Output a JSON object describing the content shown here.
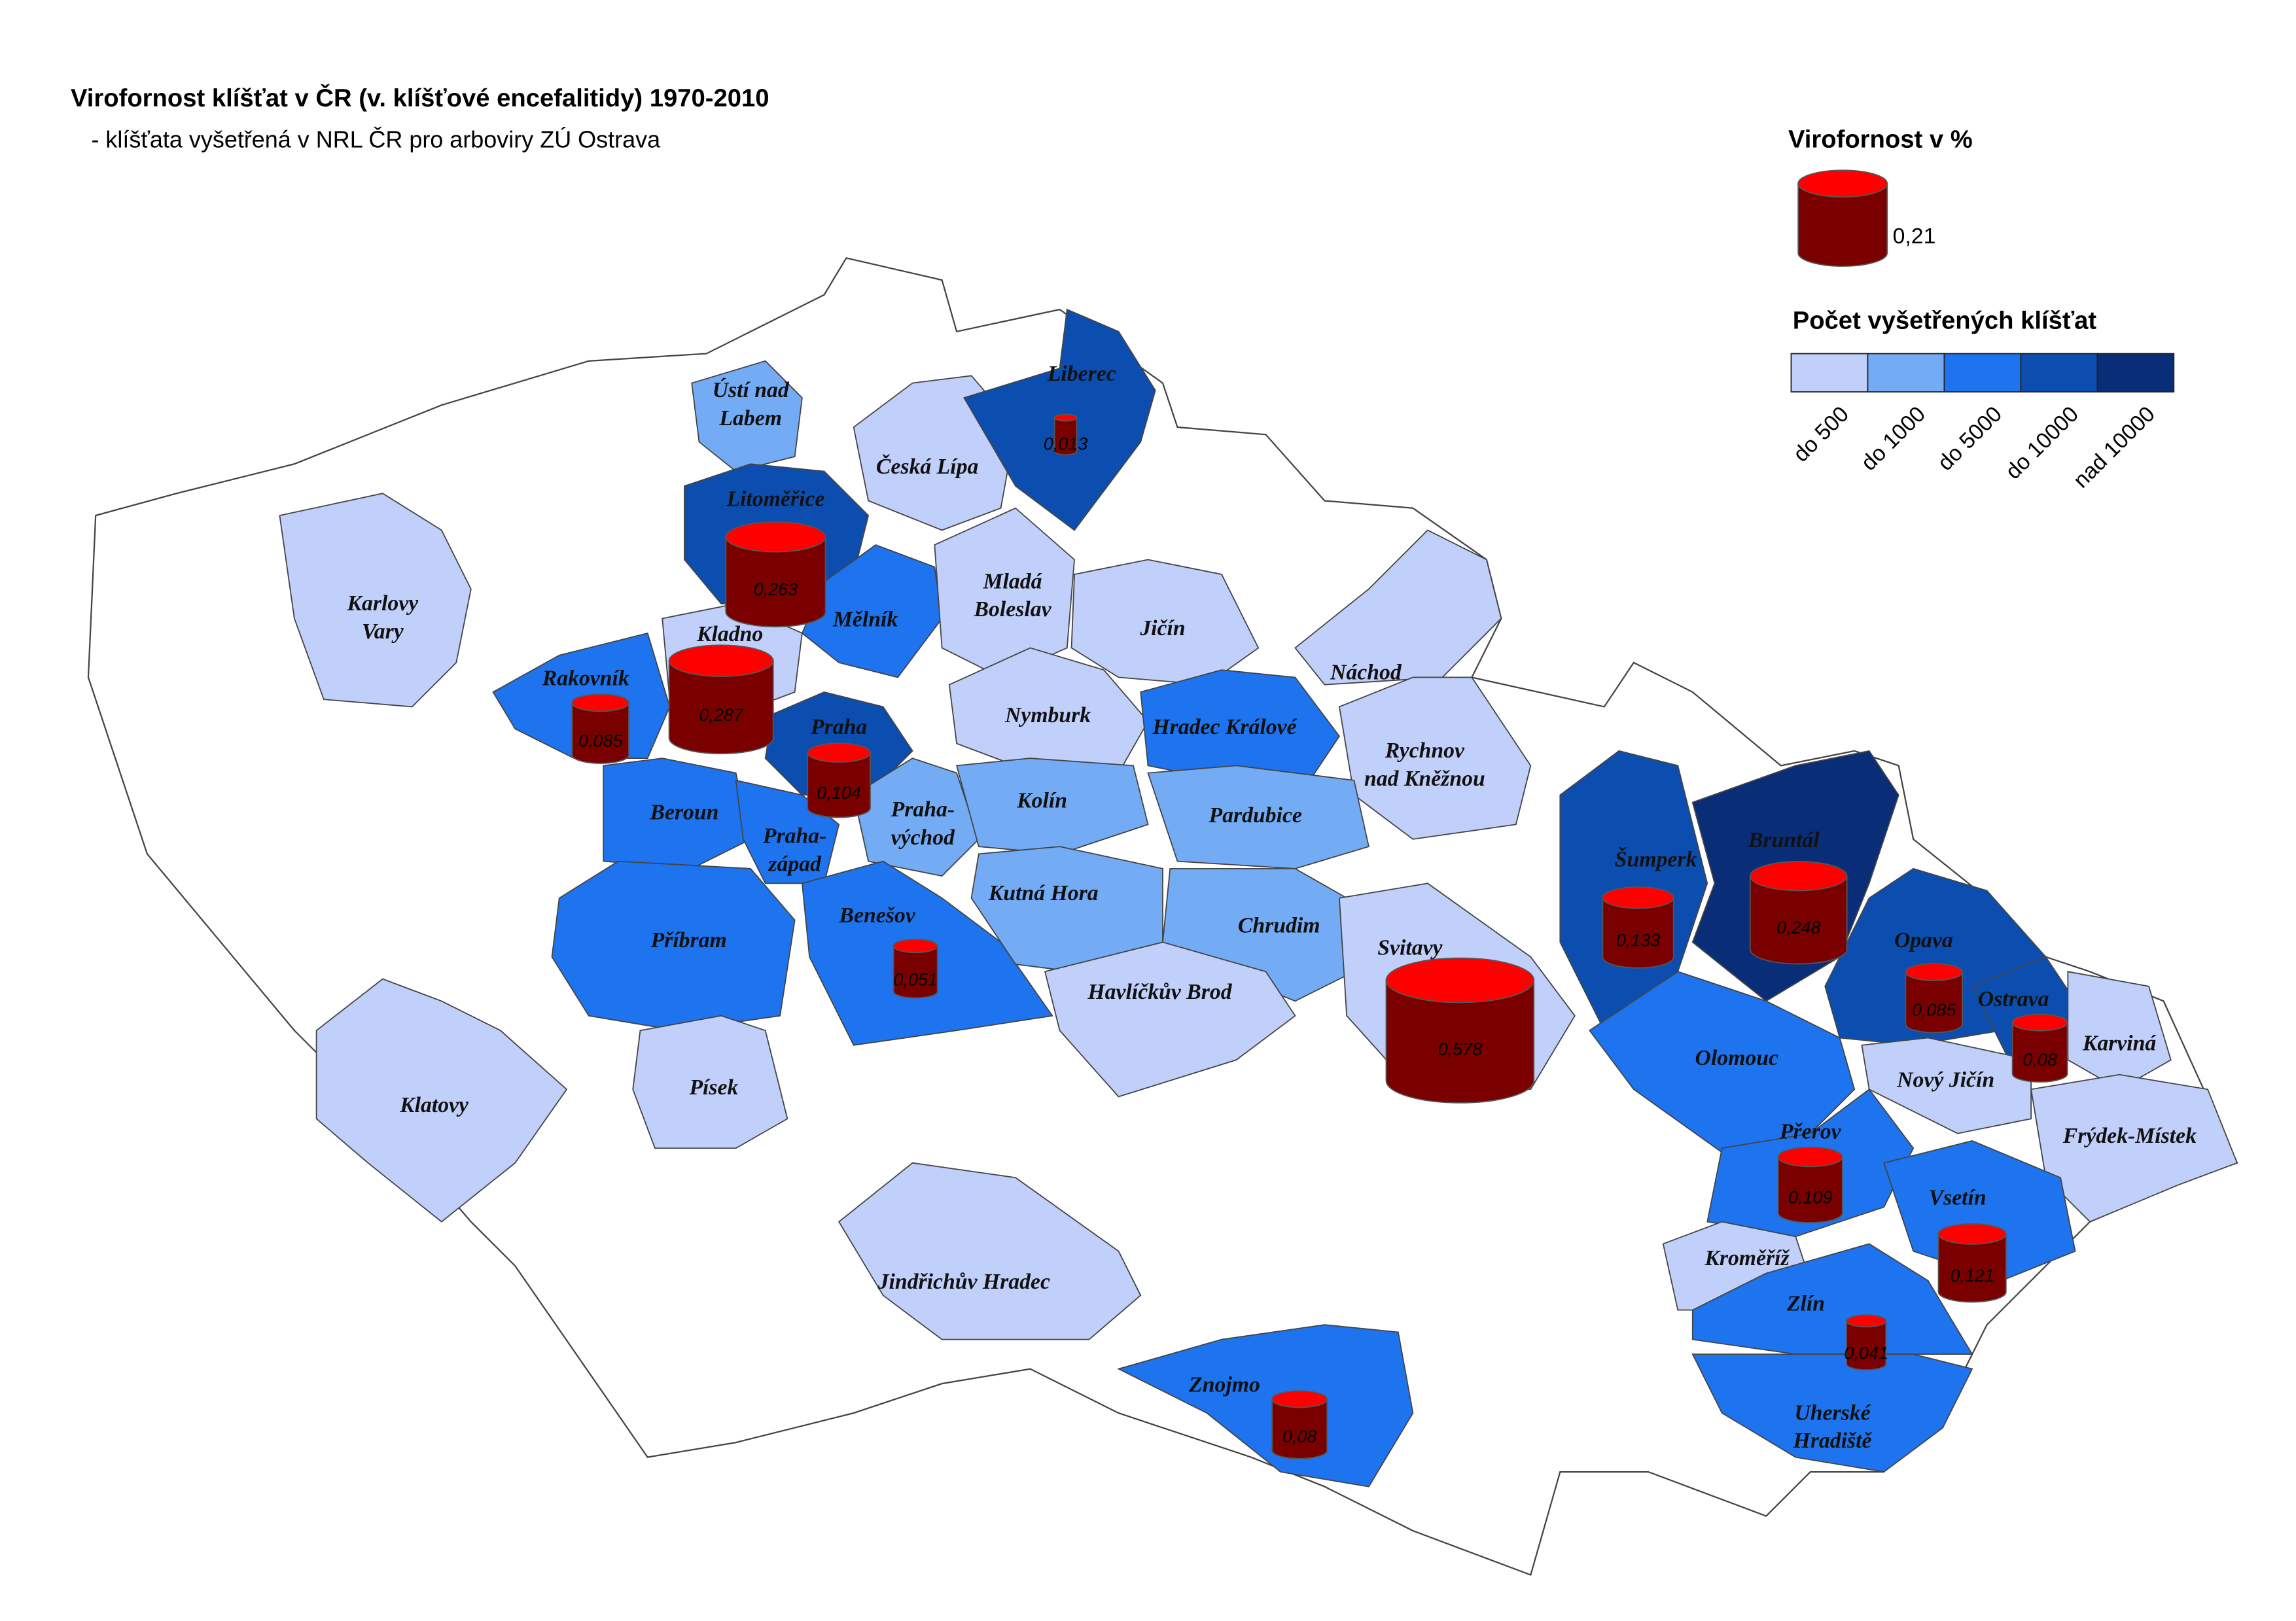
{
  "header": {
    "title": "Virofornost klíšťat v ČR (v. klíšťové encefalitidy) 1970-2010",
    "subtitle": "- klíšťata vyšetřená v NRL ČR pro arboviry ZÚ Ostrava"
  },
  "size_legend": {
    "title": "Virofornost v %",
    "value": 0.21,
    "label": "0,21",
    "top_color": "#ff0000",
    "body_color": "#7a0000"
  },
  "color_legend": {
    "title": "Počet vyšetřených klíšťat",
    "classes": [
      {
        "label": "do 500",
        "color": "#c0d0fa"
      },
      {
        "label": "do 1000",
        "color": "#74abf5"
      },
      {
        "label": "do 5000",
        "color": "#1e73ee"
      },
      {
        "label": "do 10000",
        "color": "#0b4eb0"
      },
      {
        "label": "nad 10000",
        "color": "#0a2d78"
      }
    ]
  },
  "districts": [
    {
      "name": "Karlovy Vary",
      "class": 0
    },
    {
      "name": "Ústí nad Labem",
      "class": 1
    },
    {
      "name": "Česká Lípa",
      "class": 0
    },
    {
      "name": "Liberec",
      "class": 3,
      "value": 0.013,
      "label": "0,013"
    },
    {
      "name": "Litoměřice",
      "class": 3,
      "value": 0.263,
      "label": "0,263"
    },
    {
      "name": "Mělník",
      "class": 2
    },
    {
      "name": "Mladá Boleslav",
      "class": 0
    },
    {
      "name": "Jičín",
      "class": 0
    },
    {
      "name": "Náchod",
      "class": 0
    },
    {
      "name": "Kladno",
      "class": 0,
      "value": 0.287,
      "label": "0,287"
    },
    {
      "name": "Rakovník",
      "class": 2,
      "value": 0.085,
      "label": "0,085"
    },
    {
      "name": "Praha",
      "class": 3,
      "value": 0.104,
      "label": "0,104"
    },
    {
      "name": "Nymburk",
      "class": 0
    },
    {
      "name": "Hradec Králové",
      "class": 2
    },
    {
      "name": "Rychnov nad Kněžnou",
      "class": 0
    },
    {
      "name": "Beroun",
      "class": 2
    },
    {
      "name": "Praha-západ",
      "class": 2
    },
    {
      "name": "Praha-východ",
      "class": 1
    },
    {
      "name": "Kolín",
      "class": 1
    },
    {
      "name": "Pardubice",
      "class": 1
    },
    {
      "name": "Šumperk",
      "class": 3,
      "value": 0.133,
      "label": "0,133"
    },
    {
      "name": "Bruntál",
      "class": 4,
      "value": 0.248,
      "label": "0,248"
    },
    {
      "name": "Příbram",
      "class": 2
    },
    {
      "name": "Benešov",
      "class": 2,
      "value": 0.051,
      "label": "0,051"
    },
    {
      "name": "Kutná Hora",
      "class": 1
    },
    {
      "name": "Chrudim",
      "class": 1
    },
    {
      "name": "Svitavy",
      "class": 0,
      "value": 0.578,
      "label": "0,578"
    },
    {
      "name": "Opava",
      "class": 3,
      "value": 0.085,
      "label": "0,085"
    },
    {
      "name": "Ostrava",
      "class": 3,
      "value": 0.08,
      "label": "0,08"
    },
    {
      "name": "Karviná",
      "class": 0
    },
    {
      "name": "Havlíčkův Brod",
      "class": 0
    },
    {
      "name": "Olomouc",
      "class": 2
    },
    {
      "name": "Nový Jičín",
      "class": 0
    },
    {
      "name": "Klatovy",
      "class": 0
    },
    {
      "name": "Písek",
      "class": 0
    },
    {
      "name": "Frýdek-Místek",
      "class": 0
    },
    {
      "name": "Přerov",
      "class": 2,
      "value": 0.109,
      "label": "0,109"
    },
    {
      "name": "Vsetín",
      "class": 2,
      "value": 0.121,
      "label": "0,121"
    },
    {
      "name": "Kroměříž",
      "class": 0
    },
    {
      "name": "Jindřichův Hradec",
      "class": 0
    },
    {
      "name": "Zlín",
      "class": 2,
      "value": 0.041,
      "label": "0,041"
    },
    {
      "name": "Znojmo",
      "class": 2,
      "value": 0.08,
      "label": "0,08"
    },
    {
      "name": "Uherské Hradiště",
      "class": 2
    }
  ]
}
